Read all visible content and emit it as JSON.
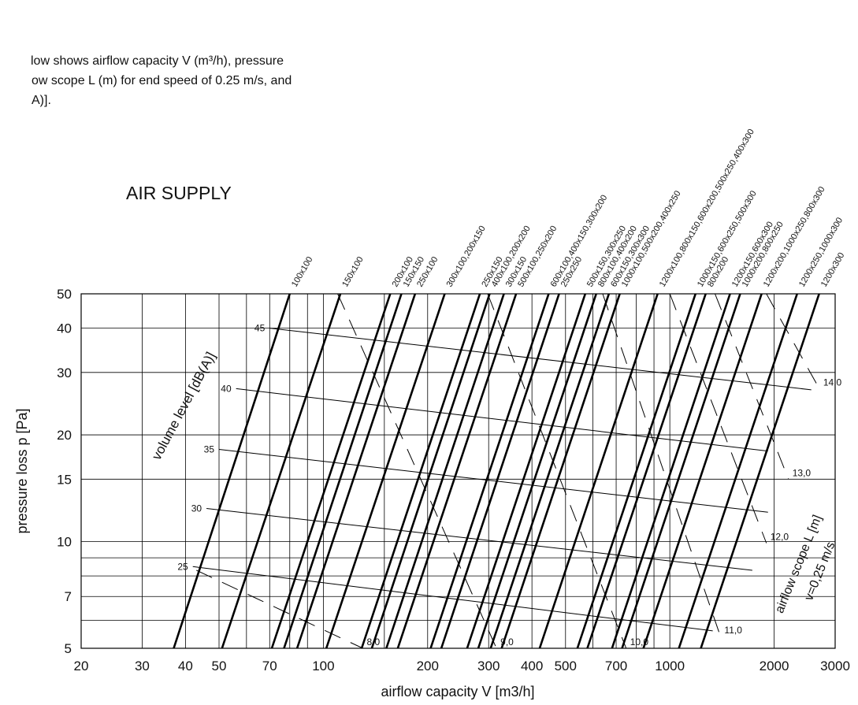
{
  "intro": [
    "low shows airflow capacity V (m³/h), pressure",
    "ow scope L (m) for end speed of 0.25 m/s, and",
    "A)]."
  ],
  "chart_data": {
    "type": "line",
    "title": "AIR SUPPLY",
    "x_label": "airflow capacity V [m3/h]",
    "y_label": "pressure loss  p [Pa]",
    "xscale": "log",
    "yscale": "log",
    "xlim": [
      20,
      3000
    ],
    "ylim": [
      5,
      50
    ],
    "xticks": [
      20,
      30,
      40,
      50,
      70,
      100,
      200,
      300,
      400,
      500,
      700,
      1000,
      2000,
      3000
    ],
    "yticks": [
      5,
      7,
      10,
      15,
      20,
      30,
      40,
      50
    ],
    "xminor": [
      60,
      80,
      90,
      150,
      600,
      800,
      900
    ],
    "yminor": [
      6,
      8,
      9
    ],
    "grid": true,
    "color": "#000000",
    "series": [
      {
        "name": "100x100",
        "x": [
          37,
          80
        ],
        "y": [
          5,
          50
        ]
      },
      {
        "name": "150x100",
        "x": [
          51,
          112
        ],
        "y": [
          5,
          50
        ]
      },
      {
        "name": "200x100",
        "x": [
          71,
          156
        ],
        "y": [
          5,
          50
        ]
      },
      {
        "name": "150x150",
        "x": [
          77,
          168
        ],
        "y": [
          5,
          50
        ]
      },
      {
        "name": "250x100",
        "x": [
          84,
          184
        ],
        "y": [
          5,
          50
        ]
      },
      {
        "name": "300x100,200x150",
        "x": [
          102,
          224
        ],
        "y": [
          5,
          50
        ]
      },
      {
        "name": "250x150",
        "x": [
          129,
          283
        ],
        "y": [
          5,
          50
        ]
      },
      {
        "name": "400x100,200x200",
        "x": [
          138,
          302
        ],
        "y": [
          5,
          50
        ]
      },
      {
        "name": "300x150",
        "x": [
          152,
          332
        ],
        "y": [
          5,
          50
        ]
      },
      {
        "name": "500x100,250x200",
        "x": [
          164,
          360
        ],
        "y": [
          5,
          50
        ]
      },
      {
        "name": "600x100,400x150,300x200",
        "x": [
          204,
          447
        ],
        "y": [
          5,
          50
        ]
      },
      {
        "name": "250x250",
        "x": [
          219,
          479
        ],
        "y": [
          5,
          50
        ]
      },
      {
        "name": "500x150,300x250",
        "x": [
          260,
          570
        ],
        "y": [
          5,
          50
        ]
      },
      {
        "name": "800x100,400x200",
        "x": [
          280,
          613
        ],
        "y": [
          5,
          50
        ]
      },
      {
        "name": "600x150,300x300",
        "x": [
          304,
          667
        ],
        "y": [
          5,
          50
        ]
      },
      {
        "name": "1000x100,500x200,400x250",
        "x": [
          327,
          717
        ],
        "y": [
          5,
          50
        ]
      },
      {
        "name": "1200x100,800x150,600x200,500x250,400x300",
        "x": [
          421,
          922
        ],
        "y": [
          5,
          50
        ]
      },
      {
        "name": "1000x150,600x250,500x300",
        "x": [
          541,
          1186
        ],
        "y": [
          5,
          50
        ]
      },
      {
        "name": "800x200",
        "x": [
          578,
          1269
        ],
        "y": [
          5,
          50
        ]
      },
      {
        "name": "1200x150,600x300",
        "x": [
          681,
          1492
        ],
        "y": [
          5,
          50
        ]
      },
      {
        "name": "1000x200,800x250",
        "x": [
          728,
          1596
        ],
        "y": [
          5,
          50
        ]
      },
      {
        "name": "1200x200,1000x250,800x300",
        "x": [
          839,
          1840
        ],
        "y": [
          5,
          50
        ]
      },
      {
        "name": "1200x250,1000x300",
        "x": [
          1062,
          2330
        ],
        "y": [
          5,
          50
        ]
      },
      {
        "name": "1200x300",
        "x": [
          1229,
          2697
        ],
        "y": [
          5,
          50
        ]
      }
    ],
    "noise_label": "volume level [dB(A)]",
    "noise_lines": [
      {
        "name": "45",
        "x": [
          70,
          2560
        ],
        "y": [
          40,
          26.8
        ]
      },
      {
        "name": "40",
        "x": [
          56,
          1920
        ],
        "y": [
          27,
          18
        ]
      },
      {
        "name": "35",
        "x": [
          50,
          1920
        ],
        "y": [
          18.2,
          12.1
        ]
      },
      {
        "name": "30",
        "x": [
          46,
          1730
        ],
        "y": [
          12.4,
          8.3
        ]
      },
      {
        "name": "25",
        "x": [
          42,
          1330
        ],
        "y": [
          8.5,
          5.6
        ]
      }
    ],
    "scope_label": "airflow scope L [m]",
    "scope_sublabel": "v=0,25 m/s",
    "scope_lines": [
      {
        "name": "8,0",
        "x": [
          43,
          130
        ],
        "y": [
          8.3,
          5
        ]
      },
      {
        "name": "9,0",
        "x": [
          110,
          316
        ],
        "y": [
          50,
          5
        ]
      },
      {
        "name": "10,0",
        "x": [
          298,
          748
        ],
        "y": [
          50,
          5
        ]
      },
      {
        "name": "11,0",
        "x": [
          640,
          1400
        ],
        "y": [
          50,
          5.4
        ]
      },
      {
        "name": "12,0",
        "x": [
          1000,
          1900
        ],
        "y": [
          50,
          9.9
        ]
      },
      {
        "name": "13,0",
        "x": [
          1350,
          2200
        ],
        "y": [
          50,
          15
        ]
      },
      {
        "name": "14,0",
        "x": [
          1900,
          2700
        ],
        "y": [
          50,
          27
        ]
      }
    ]
  }
}
